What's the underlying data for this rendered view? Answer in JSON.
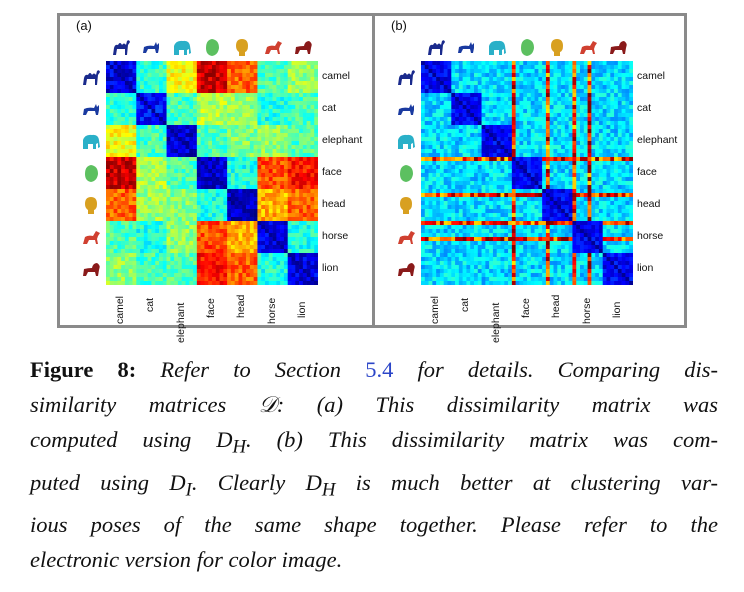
{
  "figure": {
    "panels": [
      {
        "label": "(a)"
      },
      {
        "label": "(b)"
      }
    ],
    "categories": [
      "camel",
      "cat",
      "elephant",
      "face",
      "head",
      "horse",
      "lion"
    ],
    "icons": [
      {
        "name": "camel-icon",
        "color": "#1a2a8c"
      },
      {
        "name": "cat-icon",
        "color": "#1a3aa0"
      },
      {
        "name": "elephant-icon",
        "color": "#2ab0c8"
      },
      {
        "name": "face-icon",
        "color": "#5cc060"
      },
      {
        "name": "head-icon",
        "color": "#d8a020"
      },
      {
        "name": "horse-icon",
        "color": "#d04030"
      },
      {
        "name": "lion-icon",
        "color": "#8a1a1a"
      }
    ]
  },
  "caption": {
    "label": "Figure 8:",
    "lines": [
      [
        "Refer to Section ",
        "5.4",
        " for details. Comparing dis-"
      ],
      [
        "similarity matrices 𝒟: (a) This dissimilarity matrix was"
      ],
      [
        "computed using D",
        "H",
        ". (b) This dissimilarity matrix was com-"
      ],
      [
        "puted using D",
        "I",
        ". Clearly D",
        "H",
        " is much better at clustering var-"
      ],
      [
        "ious poses of the same shape together. Please refer to the"
      ],
      [
        "electronic version for color image."
      ]
    ]
  }
}
